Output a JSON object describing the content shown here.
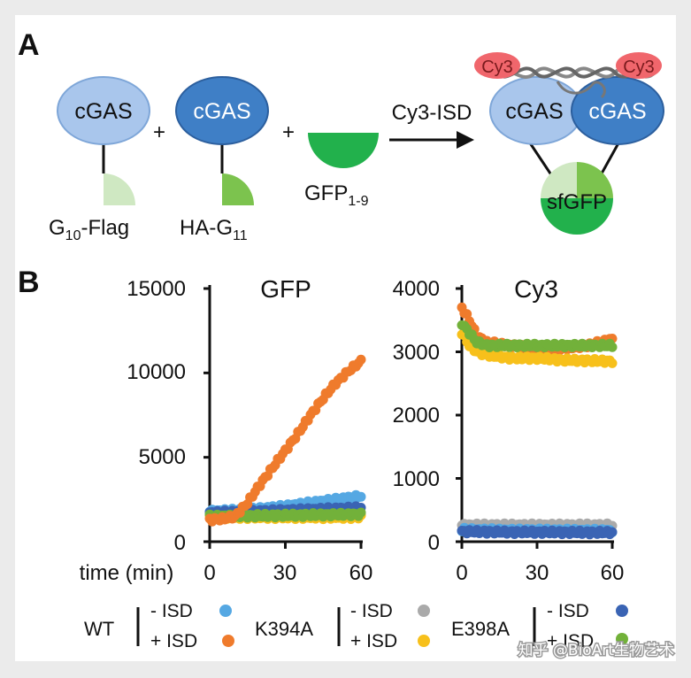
{
  "panel_a": {
    "label": "A",
    "cgas": "cGAS",
    "plus": "+",
    "g10_main": "G",
    "g10_sub": "10",
    "g10_rest": "-Flag",
    "ha_main": "HA-G",
    "ha_sub": "11",
    "gfp_main": "GFP",
    "gfp_sub": "1-9",
    "arrow_label": "Cy3-ISD",
    "cy3_badge": "Cy3",
    "sfgfp": "sfGFP",
    "colors": {
      "cgas_light": "#a9c6ec",
      "cgas_dark": "#3f7fc6",
      "gfp_dark": "#22b14c",
      "gfp_light": "#cfe8c2",
      "gfp_mid": "#7cc34e",
      "cy3": "#f0666c"
    }
  },
  "panel_b": {
    "label": "B",
    "time_label": "time (min)"
  },
  "legend": {
    "groups": [
      {
        "name": "WT",
        "minus": "- ISD",
        "plus": "+ ISD",
        "minus_color": "#55a8e3",
        "plus_color": "#ef7b2c"
      },
      {
        "name": "K394A",
        "minus": "- ISD",
        "plus": "+ ISD",
        "minus_color": "#aaaaaa",
        "plus_color": "#f7c01b"
      },
      {
        "name": "E398A",
        "minus": "- ISD",
        "plus": "+ ISD",
        "minus_color": "#3a64b4",
        "plus_color": "#72b13a"
      }
    ]
  },
  "watermark": "知乎 @BioArt生物艺术",
  "chart_data": [
    {
      "type": "scatter",
      "title": "GFP",
      "xlabel": "time (min)",
      "ylabel": "",
      "xlim": [
        0,
        60
      ],
      "ylim": [
        0,
        15000
      ],
      "xticks": [
        0,
        30,
        60
      ],
      "yticks": [
        0,
        5000,
        10000,
        15000
      ],
      "series": [
        {
          "name": "WT - ISD",
          "color": "#55a8e3",
          "x": [
            0,
            10,
            20,
            30,
            40,
            50,
            60
          ],
          "y": [
            1800,
            1850,
            1950,
            2100,
            2300,
            2500,
            2700
          ]
        },
        {
          "name": "K394A - ISD",
          "color": "#aaaaaa",
          "x": [
            0,
            10,
            20,
            30,
            40,
            50,
            60
          ],
          "y": [
            1550,
            1550,
            1550,
            1550,
            1550,
            1550,
            1550
          ]
        },
        {
          "name": "K394A + ISD",
          "color": "#f7c01b",
          "x": [
            0,
            10,
            20,
            30,
            40,
            50,
            60
          ],
          "y": [
            1450,
            1450,
            1450,
            1450,
            1450,
            1450,
            1450
          ]
        },
        {
          "name": "E398A - ISD",
          "color": "#3a64b4",
          "x": [
            0,
            10,
            20,
            30,
            40,
            50,
            60
          ],
          "y": [
            1700,
            1750,
            1800,
            1850,
            1900,
            1950,
            2000
          ]
        },
        {
          "name": "E398A + ISD",
          "color": "#72b13a",
          "x": [
            0,
            10,
            20,
            30,
            40,
            50,
            60
          ],
          "y": [
            1500,
            1520,
            1540,
            1560,
            1580,
            1600,
            1620
          ]
        },
        {
          "name": "WT + ISD",
          "color": "#ef7b2c",
          "x": [
            0,
            5,
            10,
            15,
            20,
            25,
            30,
            35,
            40,
            45,
            50,
            55,
            60
          ],
          "y": [
            1300,
            1350,
            1500,
            2300,
            3400,
            4400,
            5400,
            6400,
            7500,
            8500,
            9400,
            10100,
            10700
          ]
        }
      ]
    },
    {
      "type": "scatter",
      "title": "Cy3",
      "xlabel": "time (min)",
      "ylabel": "",
      "xlim": [
        0,
        60
      ],
      "ylim": [
        0,
        4000
      ],
      "xticks": [
        0,
        30,
        60
      ],
      "yticks": [
        0,
        1000,
        2000,
        3000,
        4000
      ],
      "series": [
        {
          "name": "K394A - ISD",
          "color": "#aaaaaa",
          "x": [
            0,
            10,
            20,
            30,
            40,
            50,
            60
          ],
          "y": [
            260,
            260,
            260,
            260,
            260,
            260,
            260
          ]
        },
        {
          "name": "WT - ISD",
          "color": "#55a8e3",
          "x": [
            0,
            10,
            20,
            30,
            40,
            50,
            60
          ],
          "y": [
            190,
            185,
            180,
            180,
            178,
            175,
            175
          ]
        },
        {
          "name": "E398A - ISD",
          "color": "#3a64b4",
          "x": [
            0,
            10,
            20,
            30,
            40,
            50,
            60
          ],
          "y": [
            160,
            155,
            150,
            150,
            148,
            145,
            145
          ]
        },
        {
          "name": "WT + ISD",
          "color": "#ef7b2c",
          "x": [
            0,
            3,
            6,
            10,
            20,
            30,
            40,
            50,
            60
          ],
          "y": [
            3700,
            3500,
            3250,
            3150,
            3100,
            3050,
            3050,
            3100,
            3200
          ]
        },
        {
          "name": "K394A + ISD",
          "color": "#f7c01b",
          "x": [
            0,
            3,
            6,
            10,
            20,
            30,
            40,
            50,
            60
          ],
          "y": [
            3300,
            3100,
            3000,
            2950,
            2900,
            2900,
            2870,
            2860,
            2850
          ]
        },
        {
          "name": "E398A + ISD",
          "color": "#72b13a",
          "x": [
            0,
            3,
            6,
            10,
            20,
            30,
            40,
            50,
            60
          ],
          "y": [
            3450,
            3300,
            3150,
            3100,
            3100,
            3100,
            3100,
            3100,
            3100
          ]
        }
      ]
    }
  ]
}
